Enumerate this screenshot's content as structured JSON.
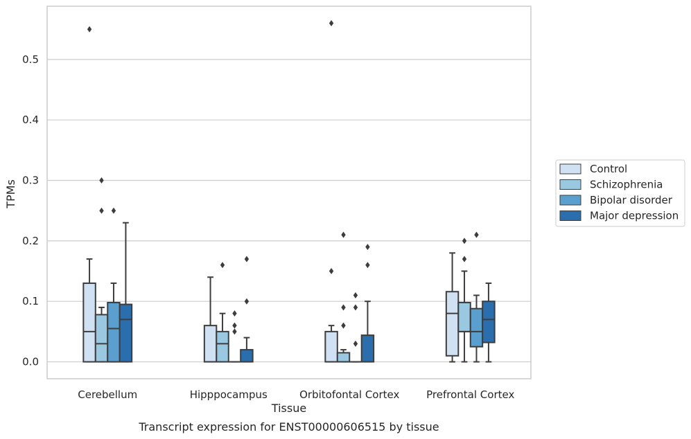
{
  "chart_data": {
    "type": "box",
    "caption": "Transcript expression for ENST00000606515 by tissue",
    "xlabel": "Tissue",
    "ylabel": "TPMs",
    "ylim": [
      -0.028,
      0.588
    ],
    "yticks": [
      0.0,
      0.1,
      0.2,
      0.3,
      0.4,
      0.5
    ],
    "ytick_labels": [
      "0.0",
      "0.1",
      "0.2",
      "0.3",
      "0.4",
      "0.5"
    ],
    "grid": "horizontal",
    "legend_position": "right",
    "categories": [
      "Cerebellum",
      "Hipppocampus",
      "Orbitofontal Cortex",
      "Prefrontal Cortex"
    ],
    "series": [
      {
        "name": "Control",
        "color": "#cfe1f2",
        "boxes": [
          {
            "whislo": 0.0,
            "q1": 0.0,
            "med": 0.05,
            "q3": 0.13,
            "whishi": 0.17,
            "fliers": [
              0.55
            ]
          },
          {
            "whislo": 0.0,
            "q1": 0.0,
            "med": 0.0,
            "q3": 0.06,
            "whishi": 0.14,
            "fliers": []
          },
          {
            "whislo": 0.0,
            "q1": 0.0,
            "med": 0.0,
            "q3": 0.05,
            "whishi": 0.06,
            "fliers": [
              0.15,
              0.56
            ]
          },
          {
            "whislo": 0.0,
            "q1": 0.01,
            "med": 0.08,
            "q3": 0.116,
            "whishi": 0.18,
            "fliers": []
          }
        ]
      },
      {
        "name": "Schizophrenia",
        "color": "#9ac8e0",
        "boxes": [
          {
            "whislo": 0.0,
            "q1": 0.0,
            "med": 0.03,
            "q3": 0.078,
            "whishi": 0.09,
            "fliers": [
              0.25,
              0.3
            ]
          },
          {
            "whislo": 0.0,
            "q1": 0.0,
            "med": 0.03,
            "q3": 0.05,
            "whishi": 0.08,
            "fliers": [
              0.16
            ]
          },
          {
            "whislo": 0.0,
            "q1": 0.0,
            "med": 0.0,
            "q3": 0.015,
            "whishi": 0.02,
            "fliers": [
              0.06,
              0.09,
              0.21
            ]
          },
          {
            "whislo": 0.0,
            "q1": 0.05,
            "med": 0.05,
            "q3": 0.098,
            "whishi": 0.15,
            "fliers": [
              0.17,
              0.2
            ]
          }
        ]
      },
      {
        "name": "Bipolar disorder",
        "color": "#5a9fcd",
        "boxes": [
          {
            "whislo": 0.0,
            "q1": 0.0,
            "med": 0.055,
            "q3": 0.098,
            "whishi": 0.13,
            "fliers": [
              0.25
            ]
          },
          {
            "whislo": 0.0,
            "q1": 0.0,
            "med": 0.0,
            "q3": 0.0,
            "whishi": 0.0,
            "fliers": [
              0.05,
              0.06,
              0.08
            ]
          },
          {
            "whislo": 0.0,
            "q1": 0.0,
            "med": 0.0,
            "q3": 0.0,
            "whishi": 0.0,
            "fliers": [
              0.03,
              0.09,
              0.11
            ]
          },
          {
            "whislo": 0.0,
            "q1": 0.025,
            "med": 0.05,
            "q3": 0.088,
            "whishi": 0.11,
            "fliers": [
              0.21
            ]
          }
        ]
      },
      {
        "name": "Major depression",
        "color": "#2a6ead",
        "boxes": [
          {
            "whislo": 0.0,
            "q1": 0.0,
            "med": 0.07,
            "q3": 0.095,
            "whishi": 0.23,
            "fliers": []
          },
          {
            "whislo": 0.0,
            "q1": 0.0,
            "med": 0.0,
            "q3": 0.02,
            "whishi": 0.04,
            "fliers": [
              0.1,
              0.17
            ]
          },
          {
            "whislo": 0.0,
            "q1": 0.0,
            "med": 0.0,
            "q3": 0.044,
            "whishi": 0.1,
            "fliers": [
              0.16,
              0.19
            ]
          },
          {
            "whislo": 0.0,
            "q1": 0.032,
            "med": 0.07,
            "q3": 0.1,
            "whishi": 0.13,
            "fliers": []
          }
        ]
      }
    ]
  }
}
